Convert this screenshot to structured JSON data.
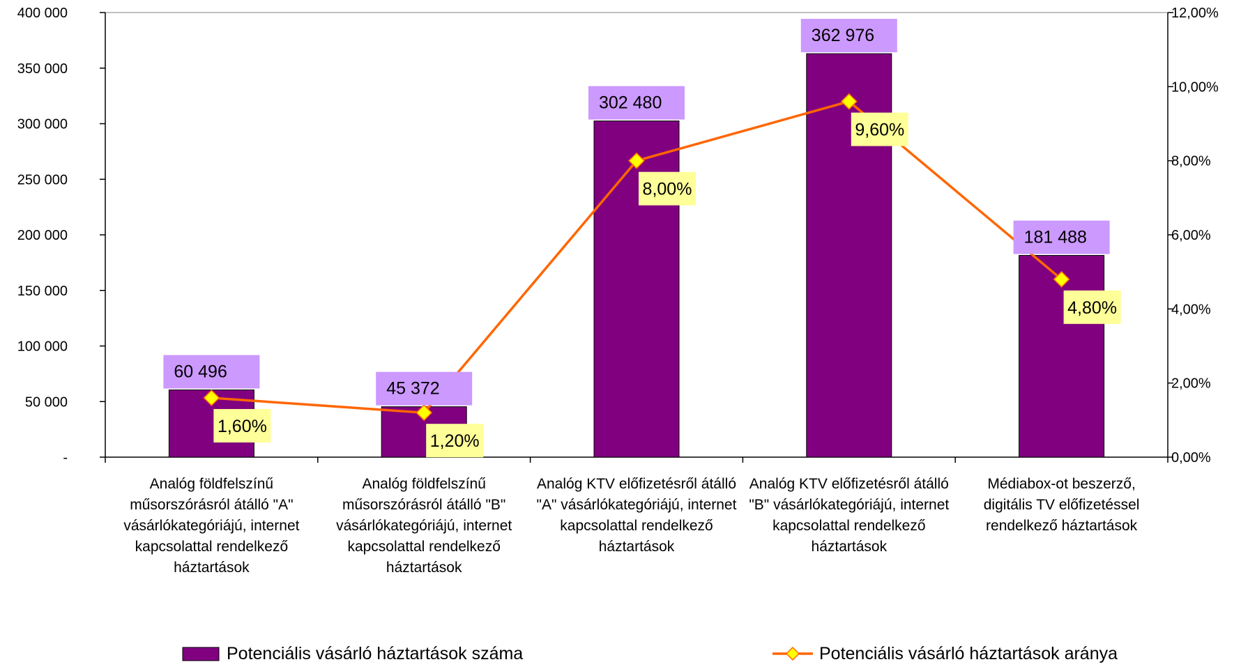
{
  "chart_data": {
    "type": "bar+line",
    "categories": [
      [
        "Analóg földfelszínű",
        "műsorszórásról átálló \"A\"",
        "vásárlókategóriájú, internet",
        "kapcsolattal rendelkező",
        "háztartások"
      ],
      [
        "Analóg földfelszínű",
        "műsorszórásról átálló \"B\"",
        "vásárlókategóriájú, internet",
        "kapcsolattal rendelkező",
        "háztartások"
      ],
      [
        "Analóg KTV előfizetésről átálló",
        "\"A\" vásárlókategóriájú, internet",
        "kapcsolattal rendelkező",
        "háztartások"
      ],
      [
        "Analóg KTV előfizetésről átálló",
        "\"B\" vásárlókategóriájú, internet",
        "kapcsolattal rendelkező",
        "háztartások"
      ],
      [
        "Médiabox-ot beszerző,",
        "digitális TV előfizetéssel",
        "rendelkező háztartások"
      ]
    ],
    "series": [
      {
        "name": "Potenciális vásárló háztartások száma",
        "type": "bar",
        "axis": "left",
        "values": [
          60496,
          45372,
          302480,
          362976,
          181488
        ],
        "labels": [
          "60 496",
          "45 372",
          "302 480",
          "362 976",
          "181 488"
        ],
        "color": "#800080",
        "label_bg": "#cc99ff"
      },
      {
        "name": "Potenciális vásárló háztartások aránya",
        "type": "line",
        "axis": "right",
        "values": [
          1.6,
          1.2,
          8.0,
          9.6,
          4.8
        ],
        "labels": [
          "1,60%",
          "1,20%",
          "8,00%",
          "9,60%",
          "4,80%"
        ],
        "color": "#ff6600",
        "marker": "diamond",
        "marker_color": "#ffff00",
        "label_bg": "#ffff99"
      }
    ],
    "y_left": {
      "range": [
        0,
        400000
      ],
      "ticks": [
        0,
        50000,
        100000,
        150000,
        200000,
        250000,
        300000,
        350000,
        400000
      ],
      "tick_labels": [
        "-",
        "50 000",
        "100 000",
        "150 000",
        "200 000",
        "250 000",
        "300 000",
        "350 000",
        "400 000"
      ]
    },
    "y_right": {
      "range": [
        0,
        12
      ],
      "ticks": [
        0,
        2,
        4,
        6,
        8,
        10,
        12
      ],
      "tick_labels": [
        "0,00%",
        "2,00%",
        "4,00%",
        "6,00%",
        "8,00%",
        "10,00%",
        "12,00%"
      ]
    },
    "grid": false,
    "legend": "bottom"
  }
}
